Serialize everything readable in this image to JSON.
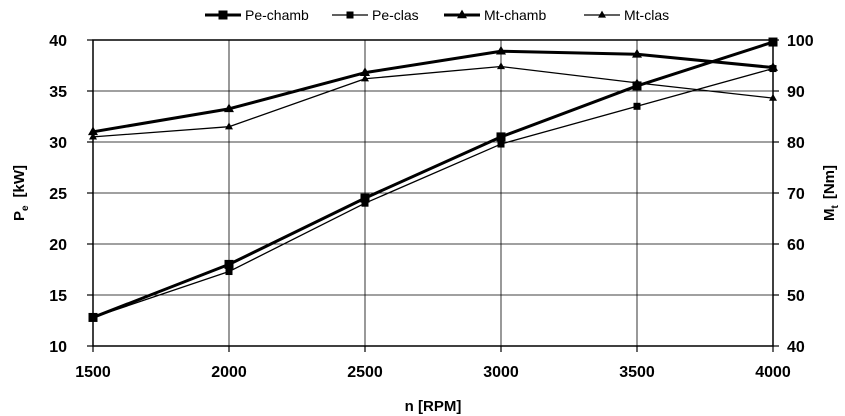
{
  "chart_data": {
    "type": "line",
    "x": [
      1500,
      2000,
      2500,
      3000,
      3500,
      4000
    ],
    "xlabel": "n [RPM]",
    "xlim": [
      1500,
      4000
    ],
    "xticks": [
      "1500",
      "2000",
      "2500",
      "3000",
      "3500",
      "4000"
    ],
    "ylabel_left_main": "P",
    "ylabel_left_sub": "e",
    "ylabel_left_unit": "[kW]",
    "ylim_left": [
      10,
      40
    ],
    "yticks_left": [
      "10",
      "15",
      "20",
      "25",
      "30",
      "35",
      "40"
    ],
    "ylabel_right_main": "M",
    "ylabel_right_sub": "t",
    "ylabel_right_unit": "[Nm]",
    "ylim_right": [
      40,
      100
    ],
    "yticks_right": [
      "40",
      "50",
      "60",
      "70",
      "80",
      "90",
      "100"
    ],
    "grid": true,
    "legend_position": "top",
    "series": [
      {
        "name": "Pe-chamb",
        "axis": "left",
        "marker": "square",
        "weight": "bold",
        "color": "#000000",
        "x": [
          1500,
          2000,
          2500,
          3000,
          3500,
          4000
        ],
        "values": [
          12.8,
          18.0,
          24.5,
          30.5,
          35.5,
          39.8
        ]
      },
      {
        "name": "Pe-clas",
        "axis": "left",
        "marker": "square",
        "weight": "thin",
        "color": "#000000",
        "x": [
          1500,
          2000,
          2500,
          3000,
          3500,
          4000
        ],
        "values": [
          12.8,
          17.3,
          24.0,
          29.8,
          33.5,
          37.2
        ]
      },
      {
        "name": "Mt-chamb",
        "axis": "right",
        "marker": "triangle",
        "weight": "bold",
        "color": "#000000",
        "x": [
          1500,
          2000,
          2500,
          3000,
          3500,
          4000
        ],
        "values": [
          82.0,
          86.5,
          93.6,
          97.8,
          97.2,
          94.6
        ]
      },
      {
        "name": "Mt-clas",
        "axis": "right",
        "marker": "triangle",
        "weight": "thin",
        "color": "#000000",
        "x": [
          1500,
          2000,
          2500,
          3000,
          3500,
          4000
        ],
        "values": [
          81.0,
          83.0,
          92.4,
          94.8,
          91.6,
          88.6
        ]
      }
    ]
  }
}
